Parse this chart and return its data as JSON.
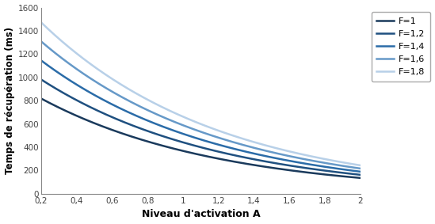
{
  "F_values": [
    1,
    1.2,
    1.4,
    1.6,
    1.8
  ],
  "F_labels": [
    "F=1",
    "F=1,2",
    "F=1,4",
    "F=1,6",
    "F=1,8"
  ],
  "colors": [
    "#1a3a5c",
    "#1f5080",
    "#2b6ca8",
    "#6699c8",
    "#b8d0e8"
  ],
  "A_min": 0.2,
  "A_max": 2.0,
  "A_ticks": [
    0.2,
    0.4,
    0.6,
    0.8,
    1.0,
    1.2,
    1.4,
    1.6,
    1.8,
    2.0
  ],
  "A_tick_labels": [
    "0,2",
    "0,4",
    "0,6",
    "0,8",
    "1",
    "1,2",
    "1,4",
    "1,6",
    "1,8",
    "2"
  ],
  "y_min": 0,
  "y_max": 1600,
  "y_ticks": [
    0,
    200,
    400,
    600,
    800,
    1000,
    1200,
    1400,
    1600
  ],
  "xlabel": "Niveau d'activation A",
  "ylabel": "Temps de récupération (ms)",
  "scale_factor": 1000,
  "linewidth": 1.8,
  "fig_width": 5.49,
  "fig_height": 2.83,
  "dpi": 100
}
